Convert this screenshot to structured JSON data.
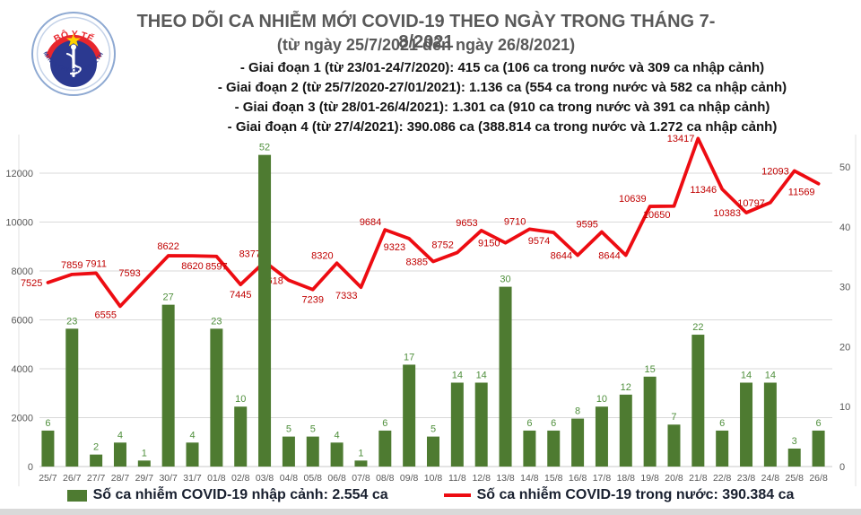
{
  "header": {
    "title_line1": "THEO DÕI CA NHIỄM MỚI COVID-19 THEO NGÀY TRONG THÁNG 7-8/2021",
    "title_line2": "(từ ngày 25/7/2021 đến ngày 26/8/2021)",
    "bullets": [
      "- Giai đoạn 1 (từ 23/01-24/7/2020): 415 ca (106 ca trong nước và 309 ca nhập cảnh)",
      "- Giai đoạn 2 (từ 25/7/2020-27/01/2021): 1.136 ca (554 ca trong nước và 582 ca nhập cảnh)",
      "- Giai đoạn 3 (từ 28/01-26/4/2021): 1.301 ca (910 ca trong nước và 391 ca nhập cảnh)",
      "- Giai đoạn 4 (từ 27/4/2021): 390.086 ca (388.814 ca trong nước và 1.272 ca nhập cảnh)"
    ],
    "logo": {
      "top_text": "BỘ Y TẾ",
      "bottom_text": "MINISTRY OF HEALTH"
    }
  },
  "chart_data": {
    "type": "combo_bar_line",
    "categories": [
      "25/7",
      "26/7",
      "27/7",
      "28/7",
      "29/7",
      "30/7",
      "31/7",
      "01/8",
      "02/8",
      "03/8",
      "04/8",
      "05/8",
      "06/8",
      "07/8",
      "08/8",
      "09/8",
      "10/8",
      "11/8",
      "12/8",
      "13/8",
      "14/8",
      "15/8",
      "16/8",
      "17/8",
      "18/8",
      "19/8",
      "20/8",
      "21/8",
      "22/8",
      "23/8",
      "24/8",
      "25/8",
      "26/8"
    ],
    "series": [
      {
        "name": "Số ca nhiễm COVID-19 nhập cảnh",
        "display_type": "bar",
        "axis": "right",
        "color": "#4e7b31",
        "label_color": "#4f8f3c",
        "values": [
          6,
          23,
          2,
          4,
          1,
          27,
          4,
          23,
          10,
          52,
          5,
          5,
          4,
          1,
          6,
          17,
          5,
          14,
          14,
          30,
          6,
          6,
          8,
          10,
          12,
          15,
          7,
          22,
          6,
          14,
          14,
          3,
          6
        ]
      },
      {
        "name": "Số ca nhiễm COVID-19 trong nước",
        "display_type": "line",
        "axis": "left",
        "color": "#ed0c12",
        "label_color": "#c00000",
        "values": [
          7525,
          7859,
          7911,
          6555,
          7593,
          8622,
          8620,
          8597,
          7445,
          8377,
          7618,
          7239,
          8320,
          7333,
          9684,
          9323,
          8385,
          8752,
          9653,
          9150,
          9710,
          9574,
          8644,
          9595,
          8644,
          10639,
          10650,
          13417,
          11346,
          10383,
          10797,
          12093,
          11569
        ]
      }
    ],
    "left_axis": {
      "ticks": [
        0,
        2000,
        4000,
        6000,
        8000,
        10000,
        12000
      ]
    },
    "right_axis": {
      "ticks": [
        0,
        10,
        20,
        30,
        40,
        50
      ]
    },
    "grid": true,
    "legend_position": "bottom",
    "label_sides": [
      "l",
      "a",
      "a",
      "lb",
      "la",
      "a",
      "b",
      "b",
      "b",
      "la",
      "l",
      "b",
      "la",
      "lb",
      "la",
      "lb",
      "l",
      "la",
      "la",
      "l",
      "la",
      "lb",
      "l",
      "la",
      "l",
      "la",
      "lb",
      "la",
      "l",
      "l",
      "l",
      "l",
      "lb"
    ],
    "axis_text_color": "#595959",
    "gridline_color": "#d9d9d9",
    "frame_color": "#e2e2e2"
  },
  "legend": {
    "bar_label": "Số ca nhiễm COVID-19 nhập cảnh: 2.554 ca",
    "line_label": "Số ca nhiễm COVID-19 trong nước: 390.384 ca"
  },
  "logo_colors": {
    "ring": "#8ea9d2",
    "red": "#e8262d",
    "navy": "#2b3990",
    "star": "#ffd100"
  }
}
